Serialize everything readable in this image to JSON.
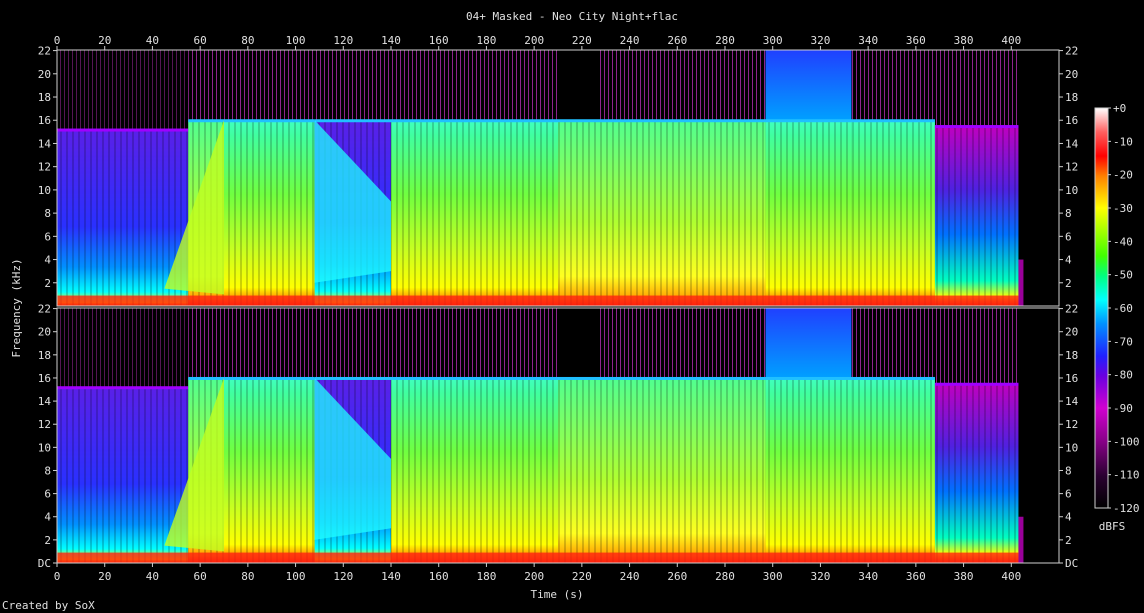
{
  "chart_data": {
    "type": "heatmap",
    "title": "04+ Masked - Neo City Night+flac",
    "xlabel": "Time (s)",
    "ylabel": "Frequency (kHz)",
    "colorbar_label": "dBFS",
    "footer": "Created by SoX",
    "xlim": [
      0,
      420
    ],
    "ylim_khz": [
      0,
      22.05
    ],
    "x_ticks": [
      "0",
      "20",
      "40",
      "60",
      "80",
      "100",
      "120",
      "140",
      "160",
      "180",
      "200",
      "220",
      "240",
      "260",
      "280",
      "300",
      "320",
      "340",
      "360",
      "380",
      "400"
    ],
    "y_ticks_top": [
      "2",
      "4",
      "6",
      "8",
      "10",
      "12",
      "14",
      "16",
      "18",
      "20",
      "22"
    ],
    "y_ticks_bottom": [
      "DC",
      "2",
      "4",
      "6",
      "8",
      "10",
      "12",
      "14",
      "16",
      "18",
      "20",
      "22"
    ],
    "colorbar_ticks": [
      "+0",
      "-10",
      "-20",
      "-30",
      "-40",
      "-50",
      "-60",
      "-70",
      "-80",
      "-90",
      "-100",
      "-110",
      "-120"
    ],
    "colorbar_range_db": [
      -120,
      0
    ],
    "channels": [
      "left",
      "right"
    ],
    "segments": [
      {
        "t0": 0,
        "t1": 22,
        "cutoff_khz": 15.2,
        "level": "low-mid"
      },
      {
        "t0": 22,
        "t1": 55,
        "cutoff_khz": 15.2,
        "level": "low"
      },
      {
        "t0": 55,
        "t1": 70,
        "cutoff_khz": 16.0,
        "level": "rising"
      },
      {
        "t0": 70,
        "t1": 108,
        "cutoff_khz": 16.0,
        "level": "mid"
      },
      {
        "t0": 108,
        "t1": 140,
        "cutoff_khz": 16.0,
        "level": "fading"
      },
      {
        "t0": 140,
        "t1": 210,
        "cutoff_khz": 16.0,
        "level": "mid"
      },
      {
        "t0": 210,
        "t1": 297,
        "cutoff_khz": 16.0,
        "level": "mid-pulsing"
      },
      {
        "t0": 297,
        "t1": 333,
        "cutoff_khz": 16.0,
        "level": "mid"
      },
      {
        "t0": 333,
        "t1": 368,
        "cutoff_khz": 16.0,
        "level": "mid"
      },
      {
        "t0": 368,
        "t1": 403,
        "cutoff_khz": 15.5,
        "level": "low-sparse"
      }
    ],
    "track_end_s": 403
  }
}
